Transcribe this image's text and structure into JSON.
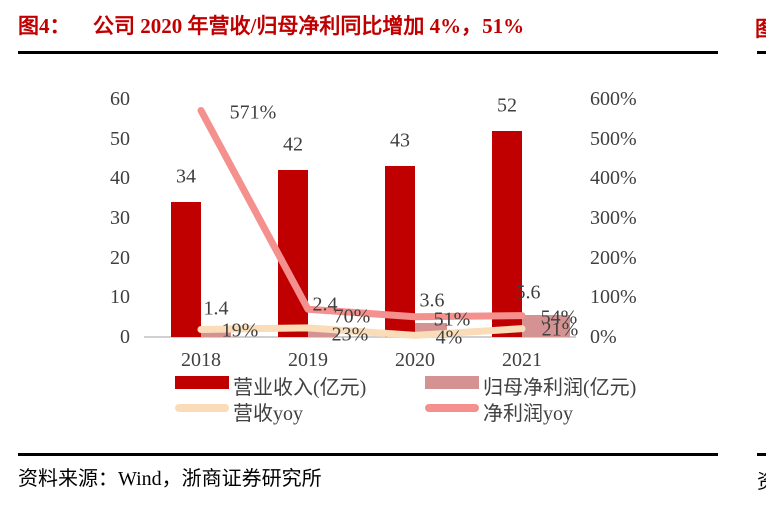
{
  "header": {
    "figure_label": "图4：",
    "title": "公司 2020 年营收/归母净利同比增加 4%，51%"
  },
  "footer": {
    "source": "资料来源：Wind，浙商证券研究所"
  },
  "fragments": {
    "top_right": "图",
    "bottom_right": "资"
  },
  "colors": {
    "title_red": "#C00000",
    "bar_revenue": "#C00000",
    "bar_net_profit": "#D49392",
    "line_revenue_yoy": "#FADCB8",
    "line_profit_yoy": "#F4908E",
    "axis_text": "#404040",
    "baseline_gray": "#D0D0D0",
    "rule_black": "#000000"
  },
  "chart_data": {
    "type": "bar",
    "subtype": "bar-line combo, dual axis",
    "categories": [
      "2018",
      "2019",
      "2020",
      "2021"
    ],
    "series": [
      {
        "name": "营业收入(亿元)",
        "type": "bar",
        "axis": "left",
        "color": "#C00000",
        "values": [
          34,
          42,
          43,
          52
        ],
        "labels": [
          "34",
          "42",
          "43",
          "52"
        ]
      },
      {
        "name": "归母净利润(亿元)",
        "type": "bar",
        "axis": "left",
        "color": "#D49392",
        "values": [
          1.4,
          2.4,
          3.6,
          5.6
        ],
        "labels": [
          "1.4",
          "2.4",
          "3.6",
          "5.6"
        ]
      },
      {
        "name": "营收yoy",
        "type": "line",
        "axis": "right",
        "color": "#FADCB8",
        "values": [
          19,
          23,
          4,
          21
        ],
        "labels": [
          "19%",
          "23%",
          "4%",
          "21%"
        ]
      },
      {
        "name": "净利润yoy",
        "type": "line",
        "axis": "right",
        "color": "#F4908E",
        "values": [
          571,
          70,
          51,
          54
        ],
        "labels": [
          "571%",
          "70%",
          "51%",
          "54%"
        ]
      }
    ],
    "left_axis": {
      "min": 0,
      "max": 60,
      "ticks": [
        "60",
        "50",
        "40",
        "30",
        "20",
        "10",
        "0"
      ]
    },
    "right_axis": {
      "min": 0,
      "max": 600,
      "ticks": [
        "600%",
        "500%",
        "400%",
        "300%",
        "200%",
        "100%",
        "0%"
      ]
    },
    "grid": false,
    "legend_position": "bottom"
  },
  "legend": {
    "items": [
      {
        "label": "营业收入(亿元)"
      },
      {
        "label": "归母净利润(亿元)"
      },
      {
        "label": "营收yoy"
      },
      {
        "label": "净利润yoy"
      }
    ]
  }
}
